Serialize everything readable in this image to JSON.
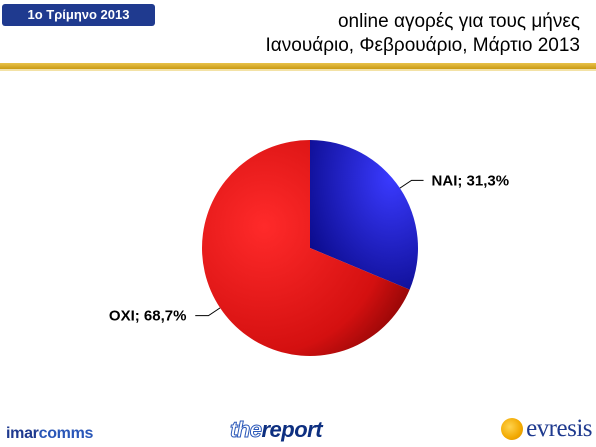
{
  "header": {
    "badge": "1ο Τρίμηνο 2013",
    "title_line1": "online αγορές για τους μήνες",
    "title_line2": "Ιανουάριο, Φεβρουάριο, Μάρτιο 2013"
  },
  "chart_data": {
    "type": "pie",
    "title": "",
    "slices": [
      {
        "name": "ΝΑΙ",
        "value": 31.3,
        "label": "ΝΑΙ; 31,3%",
        "color": "#1a1ad8"
      },
      {
        "name": "ΟΧΙ",
        "value": 68.7,
        "label": "ΟΧΙ; 68,7%",
        "color": "#e01818"
      }
    ],
    "start_angle_deg": 0,
    "direction": "clockwise",
    "legend": "none"
  },
  "footer": {
    "logo_left_a": "imar",
    "logo_left_b": "comms",
    "logo_center_a": "the",
    "logo_center_b": "report",
    "logo_right": "evresis"
  },
  "colors": {
    "badge_bg": "#1f3a8f",
    "rule_gold": "#d4a827"
  }
}
